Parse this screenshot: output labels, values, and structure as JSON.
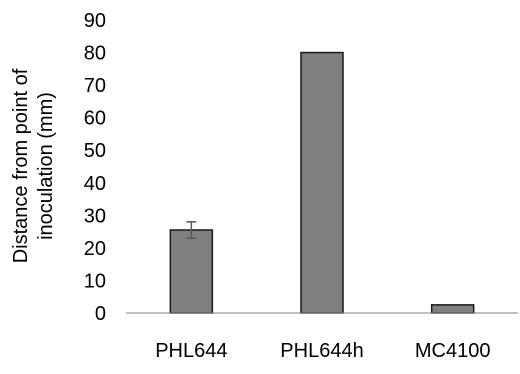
{
  "chart_data": {
    "type": "bar",
    "title": "",
    "xlabel": "",
    "ylabel": "Distance from point of inoculation (mm)",
    "ylabel_lines": [
      "Distance from point of",
      "inoculation (mm)"
    ],
    "categories": [
      "PHL644",
      "PHL644h",
      "MC4100"
    ],
    "values": [
      25.5,
      80,
      2.5
    ],
    "error": [
      2.5,
      0,
      0
    ],
    "ylim": [
      0,
      90
    ],
    "yticks": [
      0,
      10,
      20,
      30,
      40,
      50,
      60,
      70,
      80,
      90
    ],
    "grid": false,
    "legend": "none",
    "colors": {
      "bar_fill": "#7f7f7f",
      "bar_stroke": "#1a1a1a",
      "axis": "#7f7f7f",
      "error_bar": "#595959"
    }
  }
}
